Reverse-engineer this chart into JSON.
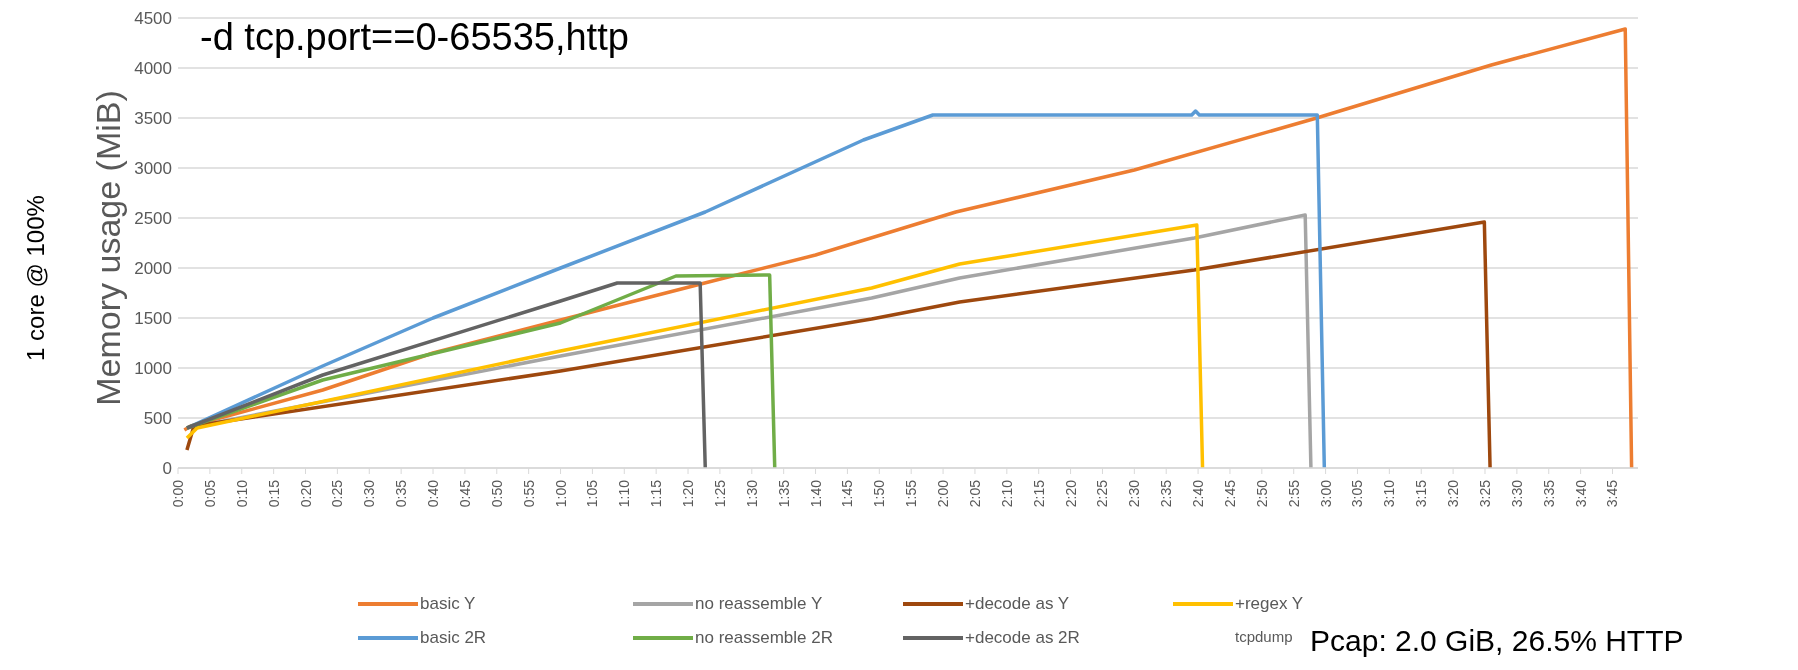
{
  "chart_data": {
    "type": "line",
    "title": "-d tcp.port==0-65535,http",
    "ylabel": "Memory usage (MiB)",
    "annotations": [
      "1 core @ 100%",
      "tcpdump",
      "Pcap: 2.0 GiB, 26.5% HTTP"
    ],
    "xlim": [
      0,
      229
    ],
    "ylim": [
      0,
      4500
    ],
    "yticks": [
      0,
      500,
      1000,
      1500,
      2000,
      2500,
      3000,
      3500,
      4000,
      4500
    ],
    "xticks": [
      {
        "value": 0,
        "label": "0:00"
      },
      {
        "value": 5,
        "label": "0:05"
      },
      {
        "value": 10,
        "label": "0:10"
      },
      {
        "value": 15,
        "label": "0:15"
      },
      {
        "value": 20,
        "label": "0:20"
      },
      {
        "value": 25,
        "label": "0:25"
      },
      {
        "value": 30,
        "label": "0:30"
      },
      {
        "value": 35,
        "label": "0:35"
      },
      {
        "value": 40,
        "label": "0:40"
      },
      {
        "value": 45,
        "label": "0:45"
      },
      {
        "value": 50,
        "label": "0:50"
      },
      {
        "value": 55,
        "label": "0:55"
      },
      {
        "value": 60,
        "label": "1:00"
      },
      {
        "value": 65,
        "label": "1:05"
      },
      {
        "value": 70,
        "label": "1:10"
      },
      {
        "value": 75,
        "label": "1:15"
      },
      {
        "value": 80,
        "label": "1:20"
      },
      {
        "value": 85,
        "label": "1:25"
      },
      {
        "value": 90,
        "label": "1:30"
      },
      {
        "value": 95,
        "label": "1:35"
      },
      {
        "value": 100,
        "label": "1:40"
      },
      {
        "value": 105,
        "label": "1:45"
      },
      {
        "value": 110,
        "label": "1:50"
      },
      {
        "value": 115,
        "label": "1:55"
      },
      {
        "value": 120,
        "label": "2:00"
      },
      {
        "value": 125,
        "label": "2:05"
      },
      {
        "value": 130,
        "label": "2:10"
      },
      {
        "value": 135,
        "label": "2:15"
      },
      {
        "value": 140,
        "label": "2:20"
      },
      {
        "value": 145,
        "label": "2:25"
      },
      {
        "value": 150,
        "label": "2:30"
      },
      {
        "value": 155,
        "label": "2:35"
      },
      {
        "value": 160,
        "label": "2:40"
      },
      {
        "value": 165,
        "label": "2:45"
      },
      {
        "value": 170,
        "label": "2:50"
      },
      {
        "value": 175,
        "label": "2:55"
      },
      {
        "value": 180,
        "label": "3:00"
      },
      {
        "value": 185,
        "label": "3:05"
      },
      {
        "value": 190,
        "label": "3:10"
      },
      {
        "value": 195,
        "label": "3:15"
      },
      {
        "value": 200,
        "label": "3:20"
      },
      {
        "value": 205,
        "label": "3:25"
      },
      {
        "value": 210,
        "label": "3:30"
      },
      {
        "value": 215,
        "label": "3:35"
      },
      {
        "value": 220,
        "label": "3:40"
      },
      {
        "value": 225,
        "label": "3:45"
      }
    ],
    "grid": "y",
    "legend": "bottom",
    "marker": "none",
    "line_style": "solid",
    "series": [
      {
        "name": "basic Y",
        "color": "#ed7d31",
        "x": [
          1,
          2,
          22.7,
          40,
          60,
          82,
          100,
          122,
          150,
          178.6,
          206,
          227,
          228
        ],
        "values": [
          380,
          420,
          780,
          1150,
          1480,
          1840,
          2130,
          2560,
          2980,
          3500,
          4030,
          4390,
          0
        ]
      },
      {
        "name": "no reassemble Y",
        "color": "#a5a5a5",
        "x": [
          1.4,
          60,
          108.8,
          122.6,
          159.4,
          176.8,
          177.7
        ],
        "values": [
          400,
          1120,
          1700,
          1900,
          2300,
          2530,
          0
        ]
      },
      {
        "name": "+decode as Y",
        "color": "#9e480e",
        "x": [
          1.4,
          2.5,
          60,
          108.8,
          122.6,
          159.4,
          204.9,
          205.8
        ],
        "values": [
          180,
          420,
          970,
          1490,
          1660,
          1980,
          2460,
          0
        ]
      },
      {
        "name": "+regex Y",
        "color": "#ffc000",
        "x": [
          1.4,
          3,
          60,
          108.8,
          122.6,
          159.8,
          160.7
        ],
        "values": [
          300,
          400,
          1170,
          1800,
          2040,
          2430,
          0
        ]
      },
      {
        "name": "basic 2R",
        "color": "#5b9bd5",
        "x": [
          1.4,
          22.7,
          40,
          60,
          82.7,
          107.5,
          118.4,
          159,
          159.6,
          160.2,
          178.7,
          179.8
        ],
        "values": [
          400,
          1020,
          1500,
          2000,
          2560,
          3280,
          3530,
          3530,
          3570,
          3530,
          3530,
          0
        ]
      },
      {
        "name": "no reassemble 2R",
        "color": "#70ad47",
        "x": [
          1.4,
          22.7,
          60,
          78.1,
          92.8,
          93.6
        ],
        "values": [
          400,
          880,
          1450,
          1920,
          1930,
          0
        ]
      },
      {
        "name": "+decode as 2R",
        "color": "#636363",
        "x": [
          1.4,
          22.7,
          60,
          68.9,
          81.9,
          82.7
        ],
        "values": [
          400,
          930,
          1670,
          1850,
          1850,
          0
        ]
      }
    ]
  }
}
